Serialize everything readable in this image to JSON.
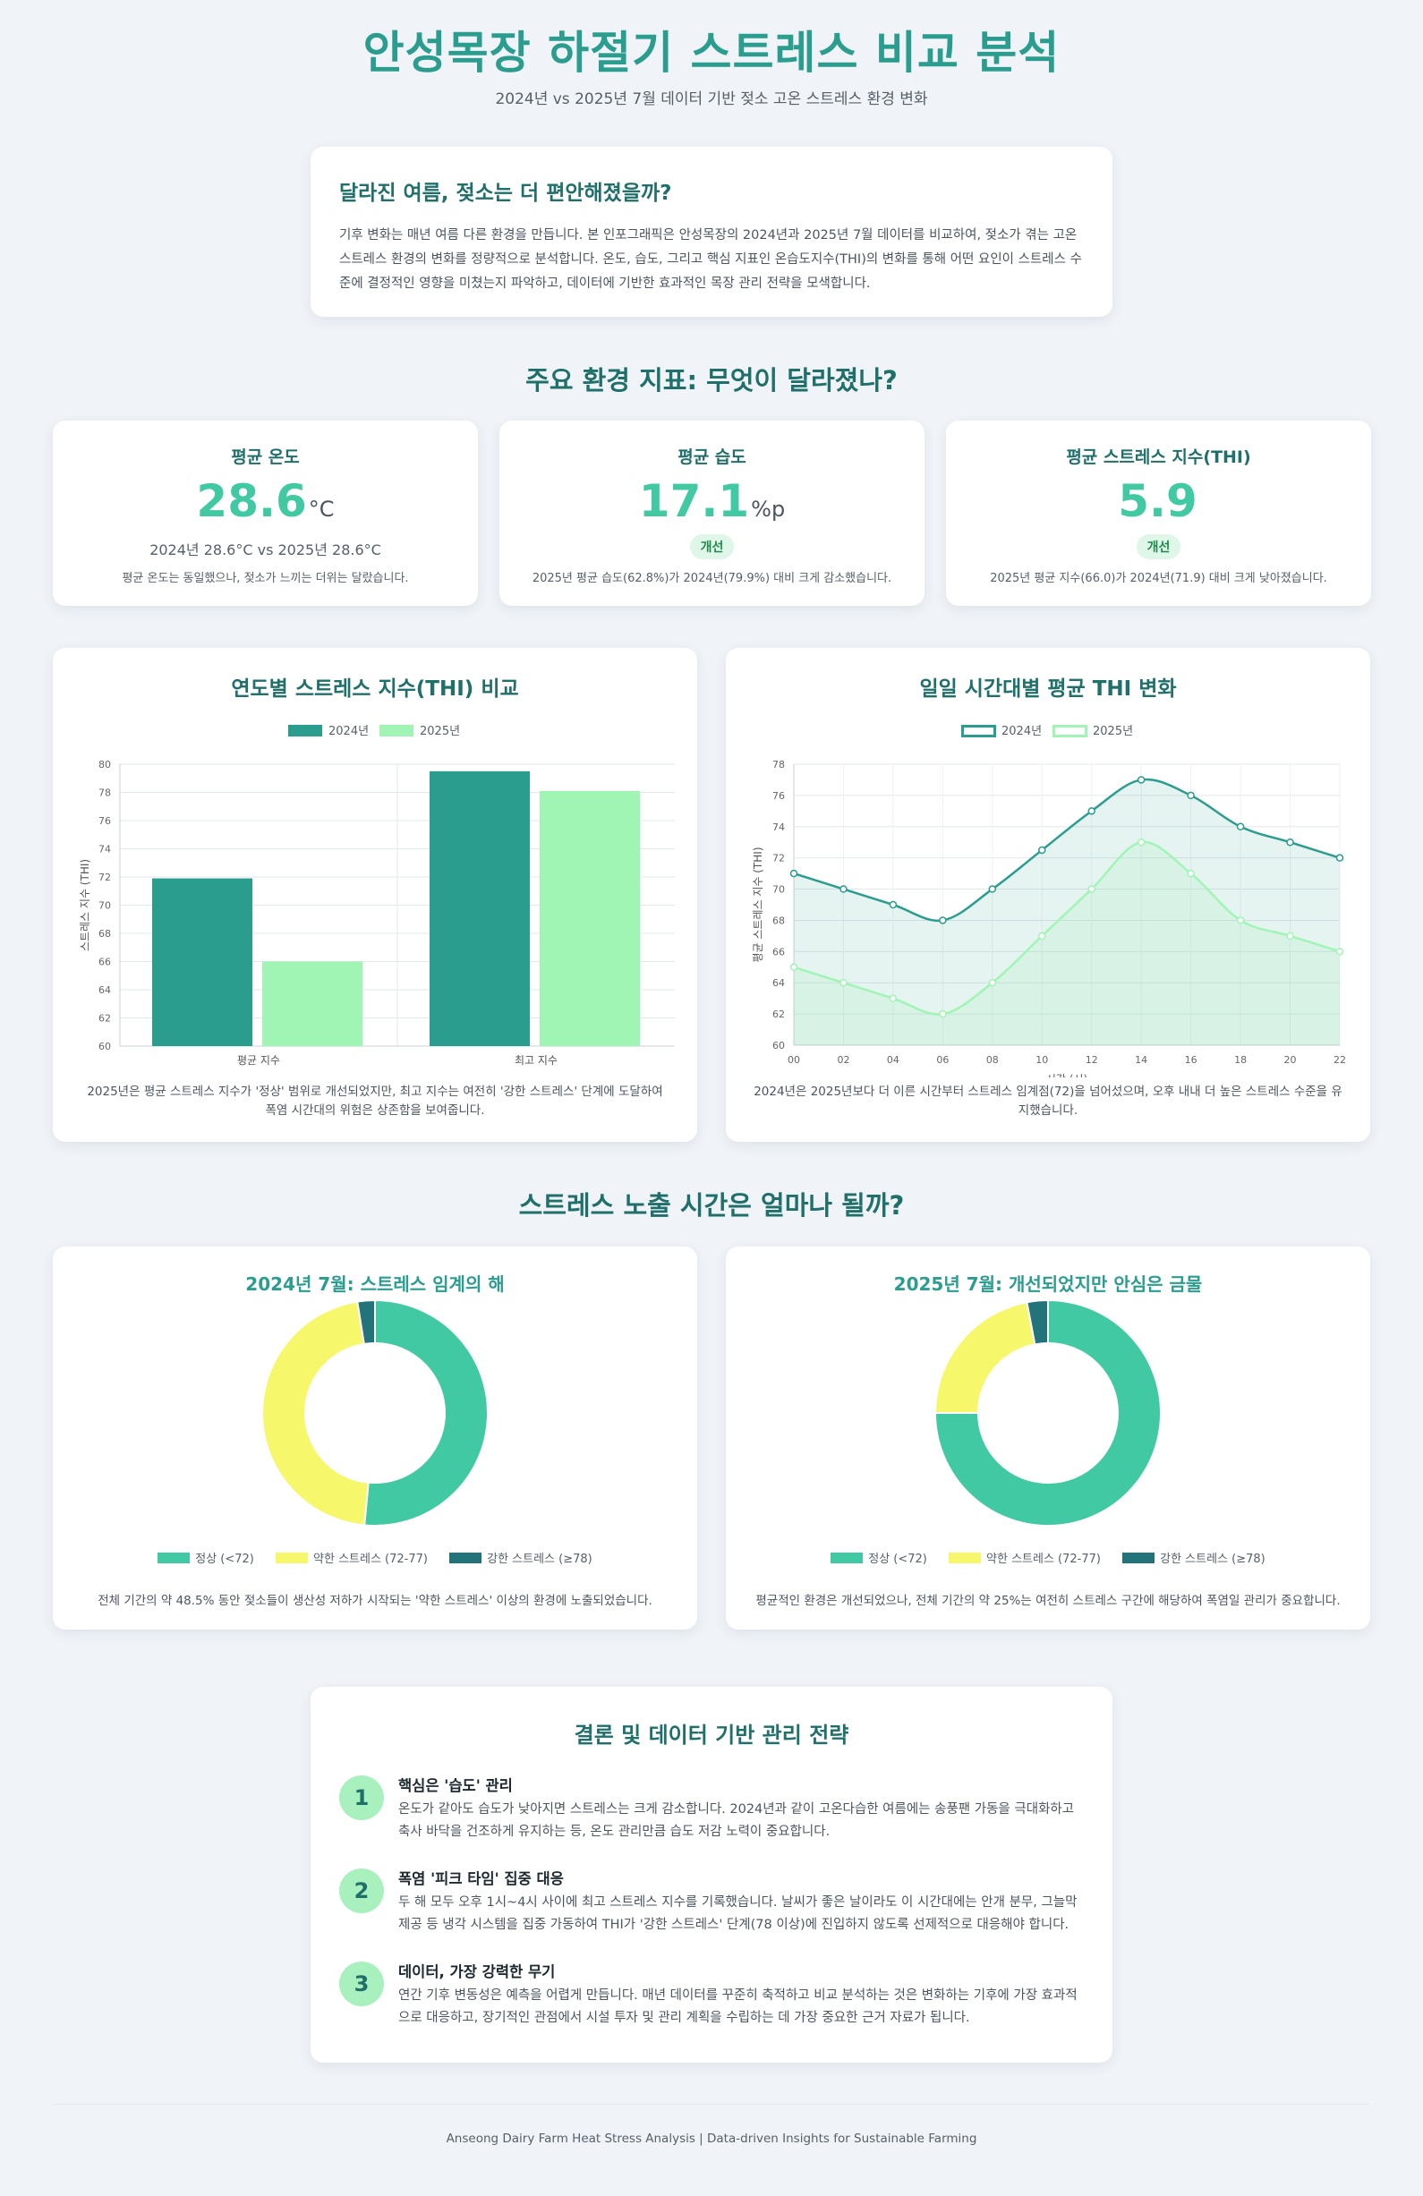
{
  "header": {
    "title": "안성목장 하절기 스트레스 비교 분석",
    "subtitle": "2024년 vs 2025년 7월 데이터 기반 젖소 고온 스트레스 환경 변화"
  },
  "intro": {
    "title": "달라진 여름, 젖소는 더 편안해졌을까?",
    "text": "기후 변화는 매년 여름 다른 환경을 만듭니다. 본 인포그래픽은 안성목장의 2024년과 2025년 7월 데이터를 비교하여, 젖소가 겪는 고온 스트레스 환경의 변화를 정량적으로 분석합니다. 온도, 습도, 그리고 핵심 지표인 온습도지수(THI)의 변화를 통해 어떤 요인이 스트레스 수준에 결정적인 영향을 미쳤는지 파악하고, 데이터에 기반한 효과적인 목장 관리 전략을 모색합니다."
  },
  "section_titles": {
    "indicators": "주요 환경 지표: 무엇이 달라졌나?",
    "exposure": "스트레스 노출 시간은 얼마나 될까?"
  },
  "kpis": [
    {
      "label": "평균 온도",
      "value": "28.6",
      "unit": "°C",
      "compare": "2024년 28.6°C vs 2025년 28.6°C",
      "badge": "",
      "note": "평균 온도는 동일했으나, 젖소가 느끼는 더위는 달랐습니다."
    },
    {
      "label": "평균 습도",
      "value": "17.1",
      "unit": "%p",
      "compare": "",
      "badge": "개선",
      "note": "2025년 평균 습도(62.8%)가 2024년(79.9%) 대비 크게 감소했습니다."
    },
    {
      "label": "평균 스트레스 지수(THI)",
      "value": "5.9",
      "unit": "",
      "compare": "",
      "badge": "개선",
      "note": "2025년 평균 지수(66.0)가 2024년(71.9) 대비 크게 낮아졌습니다."
    }
  ],
  "colors": {
    "series_2024": "#2a9d8f",
    "series_2025": "#a0f5b4",
    "normal": "#40c9a2",
    "mild": "#f7f76b",
    "severe": "#23747a"
  },
  "chart_data": [
    {
      "type": "bar",
      "title": "연도별 스트레스 지수(THI) 비교",
      "categories": [
        "평균 지수",
        "최고 지수"
      ],
      "series": [
        {
          "name": "2024년",
          "values": [
            71.9,
            79.5
          ]
        },
        {
          "name": "2025년",
          "values": [
            66.0,
            78.1
          ]
        }
      ],
      "ylabel": "스트레스 지수 (THI)",
      "ylim": [
        60,
        80
      ],
      "yticks": [
        60,
        62,
        64,
        66,
        68,
        70,
        72,
        74,
        76,
        78,
        80
      ],
      "legend": "top",
      "note": "2025년은 평균 스트레스 지수가 '정상' 범위로 개선되었지만, 최고 지수는 여전히 '강한 스트레스' 단계에 도달하여 폭염 시간대의 위험은 상존함을 보여줍니다."
    },
    {
      "type": "line",
      "title": "일일 시간대별 평균 THI 변화",
      "x": [
        "00",
        "02",
        "04",
        "06",
        "08",
        "10",
        "12",
        "14",
        "16",
        "18",
        "20",
        "22"
      ],
      "series": [
        {
          "name": "2024년",
          "values": [
            71,
            70,
            69,
            68,
            70,
            72.5,
            75,
            77,
            76,
            74,
            73,
            72
          ]
        },
        {
          "name": "2025년",
          "values": [
            65,
            64,
            63,
            62,
            64,
            67,
            70,
            73,
            71,
            68,
            67,
            66
          ]
        }
      ],
      "xlabel": "시간 (시)",
      "ylabel": "평균 스트레스 지수 (THI)",
      "ylim": [
        60,
        78
      ],
      "yticks": [
        60,
        62,
        64,
        66,
        68,
        70,
        72,
        74,
        76,
        78
      ],
      "legend": "top",
      "note": "2024년은 2025년보다 더 이른 시간부터 스트레스 임계점(72)을 넘어섰으며, 오후 내내 더 높은 스트레스 수준을 유지했습니다."
    },
    {
      "type": "pie",
      "title": "2024년 7월: 스트레스 임계의 해",
      "labels": [
        "정상 (<72)",
        "약한 스트레스 (72-77)",
        "강한 스트레스 (≥78)"
      ],
      "values": [
        51.5,
        46.0,
        2.5
      ],
      "note": "전체 기간의 약 48.5% 동안 젖소들이 생산성 저하가 시작되는 '약한 스트레스' 이상의 환경에 노출되었습니다."
    },
    {
      "type": "pie",
      "title": "2025년 7월: 개선되었지만 안심은 금물",
      "labels": [
        "정상 (<72)",
        "약한 스트레스 (72-77)",
        "강한 스트레스 (≥78)"
      ],
      "values": [
        75,
        22,
        3
      ],
      "note": "평균적인 환경은 개선되었으나, 전체 기간의 약 25%는 여전히 스트레스 구간에 해당하여 폭염일 관리가 중요합니다."
    }
  ],
  "conclusion": {
    "title": "결론 및 데이터 기반 관리 전략",
    "points": [
      {
        "num": "1",
        "title": "핵심은 '습도' 관리",
        "text": "온도가 같아도 습도가 낮아지면 스트레스는 크게 감소합니다. 2024년과 같이 고온다습한 여름에는 송풍팬 가동을 극대화하고 축사 바닥을 건조하게 유지하는 등, 온도 관리만큼 습도 저감 노력이 중요합니다."
      },
      {
        "num": "2",
        "title": "폭염 '피크 타임' 집중 대응",
        "text": "두 해 모두 오후 1시~4시 사이에 최고 스트레스 지수를 기록했습니다. 날씨가 좋은 날이라도 이 시간대에는 안개 분무, 그늘막 제공 등 냉각 시스템을 집중 가동하여 THI가 '강한 스트레스' 단계(78 이상)에 진입하지 않도록 선제적으로 대응해야 합니다."
      },
      {
        "num": "3",
        "title": "데이터, 가장 강력한 무기",
        "text": "연간 기후 변동성은 예측을 어렵게 만듭니다. 매년 데이터를 꾸준히 축적하고 비교 분석하는 것은 변화하는 기후에 가장 효과적으로 대응하고, 장기적인 관점에서 시설 투자 및 관리 계획을 수립하는 데 가장 중요한 근거 자료가 됩니다."
      }
    ]
  },
  "footer": "Anseong Dairy Farm Heat Stress Analysis | Data-driven Insights for Sustainable Farming"
}
